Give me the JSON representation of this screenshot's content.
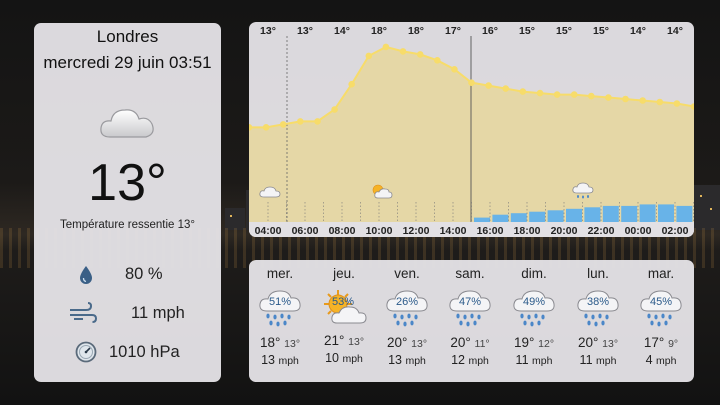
{
  "current": {
    "city": "Londres",
    "datetime": "mercredi 29 juin 03:51",
    "icon": "cloud-icon",
    "temperature": "13°",
    "feels_like": "Température ressentie 13°",
    "humidity": "80 %",
    "wind": "11 mph",
    "pressure": "1010 hPa"
  },
  "hourly": {
    "temps": [
      "13°",
      "13°",
      "14°",
      "18°",
      "18°",
      "17°",
      "16°",
      "15°",
      "15°",
      "15°",
      "14°",
      "14°"
    ],
    "times": [
      "04:00",
      "06:00",
      "08:00",
      "10:00",
      "12:00",
      "14:00",
      "16:00",
      "18:00",
      "20:00",
      "22:00",
      "00:00",
      "02:00"
    ],
    "temperature_series": [
      13,
      13,
      13.2,
      13.4,
      13.4,
      14.2,
      15.9,
      17.8,
      18.4,
      18.1,
      17.9,
      17.5,
      16.9,
      16.0,
      15.8,
      15.6,
      15.4,
      15.3,
      15.2,
      15.2,
      15.1,
      15.0,
      14.9,
      14.8,
      14.7,
      14.6,
      14.4
    ],
    "precipitation_levels": [
      0.2,
      0.33,
      0.4,
      0.47,
      0.53,
      0.6,
      0.67,
      0.73,
      0.73,
      0.8,
      0.8,
      0.73
    ],
    "weather_icons": [
      "cloud-icon",
      "sun-cloud-icon",
      "rain-cloud-icon"
    ],
    "colors": {
      "temperature_line": "#f7dc6a",
      "temperature_fill": "#e6d6a0",
      "precipitation": "#68b3e8"
    }
  },
  "daily": [
    {
      "day": "mer.",
      "icon": "rain-cloud-icon",
      "precip": "51%",
      "high": "18°",
      "low": "13°",
      "wind": "13",
      "wind_unit": "mph"
    },
    {
      "day": "jeu.",
      "icon": "sun-cloud-icon",
      "precip": "53%",
      "high": "21°",
      "low": "13°",
      "wind": "10",
      "wind_unit": "mph"
    },
    {
      "day": "ven.",
      "icon": "rain-cloud-icon",
      "precip": "26%",
      "high": "20°",
      "low": "13°",
      "wind": "13",
      "wind_unit": "mph"
    },
    {
      "day": "sam.",
      "icon": "rain-cloud-icon",
      "precip": "47%",
      "high": "20°",
      "low": "11°",
      "wind": "12",
      "wind_unit": "mph"
    },
    {
      "day": "dim.",
      "icon": "rain-cloud-icon",
      "precip": "49%",
      "high": "19°",
      "low": "12°",
      "wind": "11",
      "wind_unit": "mph"
    },
    {
      "day": "lun.",
      "icon": "rain-cloud-icon",
      "precip": "38%",
      "high": "20°",
      "low": "13°",
      "wind": "11",
      "wind_unit": "mph"
    },
    {
      "day": "mar.",
      "icon": "rain-cloud-icon",
      "precip": "45%",
      "high": "17°",
      "low": "9°",
      "wind": "4",
      "wind_unit": "mph"
    }
  ]
}
